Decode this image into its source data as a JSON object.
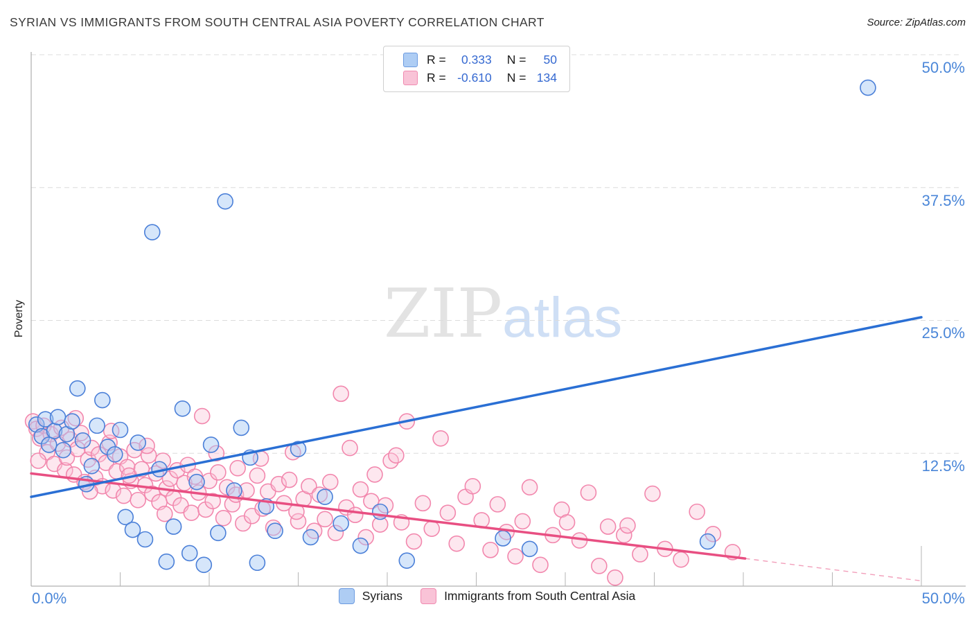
{
  "header": {
    "title": "SYRIAN VS IMMIGRANTS FROM SOUTH CENTRAL ASIA POVERTY CORRELATION CHART",
    "source": "Source: ZipAtlas.com"
  },
  "watermark": {
    "part1": "ZIP",
    "part2": "atlas"
  },
  "correlation_legend": {
    "rows": [
      {
        "r_label": "R =",
        "r_value": "0.333",
        "n_label": "N =",
        "n_value": "50"
      },
      {
        "r_label": "R =",
        "r_value": "-0.610",
        "n_label": "N =",
        "n_value": "134"
      }
    ]
  },
  "bottom_legend": {
    "items": [
      {
        "label": "Syrians",
        "color": "#aecdf4"
      },
      {
        "label": "Immigrants from South Central Asia",
        "color": "#f9c3d7"
      }
    ]
  },
  "chart_data": {
    "type": "scatter",
    "title": "Syrian vs Immigrants from South Central Asia Poverty Correlation",
    "xlabel_left": "0.0%",
    "xlabel_right": "50.0%",
    "ylabel": "Poverty",
    "xlim": [
      0,
      50
    ],
    "ylim": [
      0,
      50
    ],
    "grid": "horizontal-dashed",
    "legend_position": "bottom-center",
    "xtick_step": 5,
    "ytick_values": [
      50,
      37.5,
      25,
      12.5
    ],
    "ytick_labels": [
      "50.0%",
      "37.5%",
      "25.0%",
      "12.5%"
    ],
    "series": [
      {
        "name": "Syrians",
        "R": 0.333,
        "N": 50,
        "color_stroke": "#4a7fd8",
        "color_fill": "rgba(164,199,244,0.45)",
        "points": [
          [
            0.3,
            15.2
          ],
          [
            0.6,
            14.1
          ],
          [
            0.8,
            15.7
          ],
          [
            1.0,
            13.3
          ],
          [
            1.3,
            14.6
          ],
          [
            1.5,
            15.9
          ],
          [
            1.8,
            12.8
          ],
          [
            2.0,
            14.3
          ],
          [
            2.3,
            15.5
          ],
          [
            2.6,
            18.6
          ],
          [
            2.9,
            13.7
          ],
          [
            3.1,
            9.6
          ],
          [
            3.4,
            11.3
          ],
          [
            3.7,
            15.1
          ],
          [
            4.0,
            17.5
          ],
          [
            4.3,
            13.1
          ],
          [
            4.7,
            12.4
          ],
          [
            5.0,
            14.7
          ],
          [
            5.3,
            6.5
          ],
          [
            5.7,
            5.3
          ],
          [
            6.0,
            13.5
          ],
          [
            6.4,
            4.4
          ],
          [
            6.8,
            33.3
          ],
          [
            7.2,
            11.0
          ],
          [
            7.6,
            2.3
          ],
          [
            8.0,
            5.6
          ],
          [
            8.5,
            16.7
          ],
          [
            8.9,
            3.1
          ],
          [
            9.3,
            9.8
          ],
          [
            9.7,
            2.0
          ],
          [
            10.1,
            13.3
          ],
          [
            10.5,
            5.0
          ],
          [
            10.9,
            36.2
          ],
          [
            11.4,
            9.0
          ],
          [
            11.8,
            14.9
          ],
          [
            12.3,
            12.1
          ],
          [
            12.7,
            2.2
          ],
          [
            13.2,
            7.5
          ],
          [
            13.7,
            5.2
          ],
          [
            15.0,
            12.9
          ],
          [
            15.7,
            4.6
          ],
          [
            16.5,
            8.4
          ],
          [
            17.4,
            5.9
          ],
          [
            18.5,
            3.8
          ],
          [
            19.6,
            7.0
          ],
          [
            21.1,
            2.4
          ],
          [
            26.5,
            4.5
          ],
          [
            28.0,
            3.5
          ],
          [
            38.0,
            4.2
          ],
          [
            47.0,
            46.9
          ]
        ]
      },
      {
        "name": "Immigrants from South Central Asia",
        "R": -0.61,
        "N": 134,
        "color_stroke": "#f287ad",
        "color_fill": "rgba(249,195,214,0.4)",
        "points": [
          [
            0.1,
            15.5
          ],
          [
            0.3,
            14.8
          ],
          [
            0.5,
            13.9
          ],
          [
            0.7,
            15.1
          ],
          [
            0.9,
            12.6
          ],
          [
            1.1,
            14.3
          ],
          [
            1.3,
            11.5
          ],
          [
            1.5,
            13.4
          ],
          [
            1.7,
            14.9
          ],
          [
            1.9,
            10.9
          ],
          [
            2.0,
            12.1
          ],
          [
            0.4,
            11.8
          ],
          [
            2.2,
            13.8
          ],
          [
            2.4,
            10.5
          ],
          [
            2.6,
            12.9
          ],
          [
            2.8,
            14.4
          ],
          [
            3.0,
            9.8
          ],
          [
            3.2,
            11.9
          ],
          [
            3.4,
            13.0
          ],
          [
            3.6,
            10.2
          ],
          [
            3.8,
            12.4
          ],
          [
            4.0,
            9.4
          ],
          [
            2.5,
            15.8
          ],
          [
            3.3,
            8.9
          ],
          [
            4.2,
            11.6
          ],
          [
            4.4,
            13.5
          ],
          [
            4.6,
            9.0
          ],
          [
            4.8,
            10.8
          ],
          [
            5.0,
            12.2
          ],
          [
            5.2,
            8.5
          ],
          [
            5.4,
            11.2
          ],
          [
            5.6,
            9.9
          ],
          [
            5.8,
            12.8
          ],
          [
            6.0,
            8.1
          ],
          [
            4.5,
            14.6
          ],
          [
            5.5,
            10.4
          ],
          [
            6.2,
            11.0
          ],
          [
            6.4,
            9.5
          ],
          [
            6.6,
            12.3
          ],
          [
            6.8,
            8.7
          ],
          [
            7.0,
            10.6
          ],
          [
            7.2,
            7.9
          ],
          [
            7.4,
            11.8
          ],
          [
            7.6,
            9.2
          ],
          [
            7.8,
            10.1
          ],
          [
            8.0,
            8.3
          ],
          [
            6.5,
            13.2
          ],
          [
            7.5,
            6.8
          ],
          [
            8.2,
            10.9
          ],
          [
            8.4,
            7.6
          ],
          [
            8.6,
            9.7
          ],
          [
            8.8,
            11.4
          ],
          [
            9.0,
            6.9
          ],
          [
            9.2,
            10.3
          ],
          [
            9.4,
            8.8
          ],
          [
            9.6,
            16.0
          ],
          [
            9.8,
            7.2
          ],
          [
            10.0,
            9.9
          ],
          [
            10.2,
            8.0
          ],
          [
            10.5,
            10.7
          ],
          [
            10.8,
            6.4
          ],
          [
            11.0,
            9.3
          ],
          [
            11.3,
            7.7
          ],
          [
            11.6,
            11.1
          ],
          [
            11.9,
            5.9
          ],
          [
            10.4,
            12.5
          ],
          [
            11.5,
            8.6
          ],
          [
            12.1,
            9.0
          ],
          [
            12.4,
            6.6
          ],
          [
            12.7,
            10.4
          ],
          [
            13.0,
            7.3
          ],
          [
            13.3,
            8.9
          ],
          [
            13.6,
            5.5
          ],
          [
            13.9,
            9.6
          ],
          [
            12.9,
            12.0
          ],
          [
            14.2,
            7.8
          ],
          [
            14.5,
            10.0
          ],
          [
            14.7,
            12.6
          ],
          [
            15.0,
            6.1
          ],
          [
            15.3,
            8.2
          ],
          [
            15.6,
            9.4
          ],
          [
            15.9,
            5.2
          ],
          [
            14.9,
            7.0
          ],
          [
            16.2,
            8.6
          ],
          [
            16.5,
            6.3
          ],
          [
            16.8,
            9.8
          ],
          [
            17.1,
            5.0
          ],
          [
            17.4,
            18.1
          ],
          [
            17.7,
            7.4
          ],
          [
            17.9,
            13.0
          ],
          [
            18.2,
            6.7
          ],
          [
            18.5,
            9.1
          ],
          [
            18.8,
            4.6
          ],
          [
            19.1,
            8.0
          ],
          [
            19.3,
            10.5
          ],
          [
            19.6,
            5.8
          ],
          [
            19.9,
            7.6
          ],
          [
            20.2,
            11.8
          ],
          [
            20.5,
            12.3
          ],
          [
            20.8,
            6.0
          ],
          [
            21.1,
            15.5
          ],
          [
            21.5,
            4.2
          ],
          [
            22.0,
            7.8
          ],
          [
            22.5,
            5.4
          ],
          [
            23.0,
            13.9
          ],
          [
            23.4,
            6.9
          ],
          [
            23.9,
            4.0
          ],
          [
            24.4,
            8.4
          ],
          [
            24.8,
            9.4
          ],
          [
            25.3,
            6.2
          ],
          [
            25.8,
            3.4
          ],
          [
            26.2,
            7.7
          ],
          [
            26.7,
            5.1
          ],
          [
            27.2,
            2.8
          ],
          [
            27.6,
            6.1
          ],
          [
            28.0,
            9.3
          ],
          [
            28.6,
            2.0
          ],
          [
            29.3,
            4.8
          ],
          [
            29.8,
            7.2
          ],
          [
            30.1,
            6.0
          ],
          [
            30.8,
            4.3
          ],
          [
            31.3,
            8.8
          ],
          [
            31.9,
            1.9
          ],
          [
            32.4,
            5.6
          ],
          [
            32.8,
            0.8
          ],
          [
            33.3,
            4.8
          ],
          [
            33.5,
            5.7
          ],
          [
            34.2,
            3.0
          ],
          [
            34.9,
            8.7
          ],
          [
            35.6,
            3.5
          ],
          [
            36.5,
            2.5
          ],
          [
            37.4,
            7.0
          ],
          [
            38.3,
            4.9
          ],
          [
            39.4,
            3.2
          ]
        ]
      }
    ],
    "trend_lines": [
      {
        "series": "Syrians",
        "color": "#2a6fd4",
        "style": "solid",
        "start": [
          0,
          8.4
        ],
        "end": [
          50,
          25.3
        ]
      },
      {
        "series": "Immigrants from South Central Asia",
        "color": "#e84f82",
        "style": "solid-then-dashed",
        "start": [
          0,
          10.6
        ],
        "end": [
          40.1,
          2.6
        ],
        "dashed_extension_end": [
          50,
          0.5
        ]
      }
    ]
  }
}
